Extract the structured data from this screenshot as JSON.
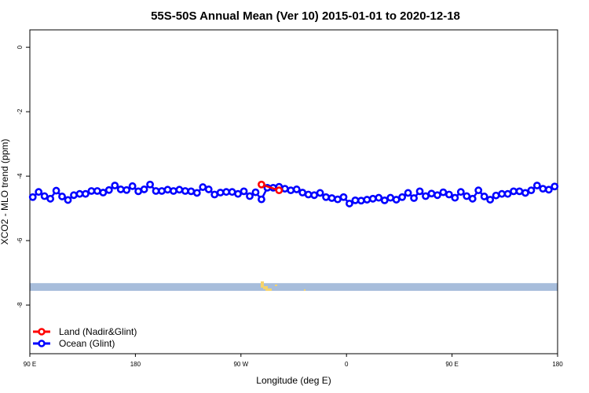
{
  "chart_data": {
    "type": "line",
    "title": "55S-50S Annual Mean (Ver 10)   2015-01-01 to 2020-12-18",
    "xlabel": "Longitude (deg E)",
    "ylabel": "XCO2 - MLO trend (ppm)",
    "x_unit_note": "unwrapped longitude degrees (90 = 90 E, 180 = 180, 270 = 90 W, 360 = 0, 450 = 90 E, 540 = 180)",
    "xlim": [
      90,
      540
    ],
    "ylim": [
      -9.51,
      0.54
    ],
    "xticks": [
      {
        "value": 90,
        "label": "90 E"
      },
      {
        "value": 180,
        "label": "180"
      },
      {
        "value": 270,
        "label": "90 W"
      },
      {
        "value": 360,
        "label": "0"
      },
      {
        "value": 450,
        "label": "90 E"
      },
      {
        "value": 540,
        "label": "180"
      }
    ],
    "yticks": [
      {
        "value": 0,
        "label": "0"
      },
      {
        "value": -2,
        "label": "-2"
      },
      {
        "value": -4,
        "label": "-4"
      },
      {
        "value": -6,
        "label": "-6"
      },
      {
        "value": -8,
        "label": "-8"
      }
    ],
    "grid": false,
    "legend_position": "bottom-left",
    "series": [
      {
        "name": "Land (Nadir&Glint)",
        "color": "#ff0000",
        "x": [
          287.5,
          302.5
        ],
        "values": [
          -4.26,
          -4.44
        ]
      },
      {
        "name": "Ocean (Glint)",
        "color": "#0000ff",
        "x_start": 92.5,
        "x_step": 5,
        "values": [
          -4.65,
          -4.49,
          -4.62,
          -4.7,
          -4.45,
          -4.63,
          -4.74,
          -4.59,
          -4.55,
          -4.55,
          -4.46,
          -4.46,
          -4.51,
          -4.43,
          -4.29,
          -4.41,
          -4.43,
          -4.31,
          -4.47,
          -4.41,
          -4.26,
          -4.46,
          -4.46,
          -4.42,
          -4.46,
          -4.42,
          -4.46,
          -4.47,
          -4.52,
          -4.34,
          -4.41,
          -4.57,
          -4.51,
          -4.49,
          -4.49,
          -4.55,
          -4.47,
          -4.62,
          -4.5,
          -4.72,
          -4.36,
          -4.36,
          -4.33,
          -4.39,
          -4.44,
          -4.41,
          -4.51,
          -4.57,
          -4.59,
          -4.52,
          -4.65,
          -4.68,
          -4.72,
          -4.65,
          -4.85,
          -4.75,
          -4.76,
          -4.73,
          -4.7,
          -4.67,
          -4.75,
          -4.67,
          -4.73,
          -4.65,
          -4.52,
          -4.68,
          -4.47,
          -4.62,
          -4.54,
          -4.59,
          -4.5,
          -4.57,
          -4.67,
          -4.49,
          -4.62,
          -4.7,
          -4.44,
          -4.63,
          -4.73,
          -4.6,
          -4.55,
          -4.55,
          -4.47,
          -4.47,
          -4.52,
          -4.44,
          -4.29,
          -4.39,
          -4.42,
          -4.32
        ]
      }
    ],
    "map_strip": {
      "ocean_color": "#a7bddb",
      "land_color": "#f5d36b",
      "y_range": [
        -7.56,
        -7.32
      ]
    }
  }
}
